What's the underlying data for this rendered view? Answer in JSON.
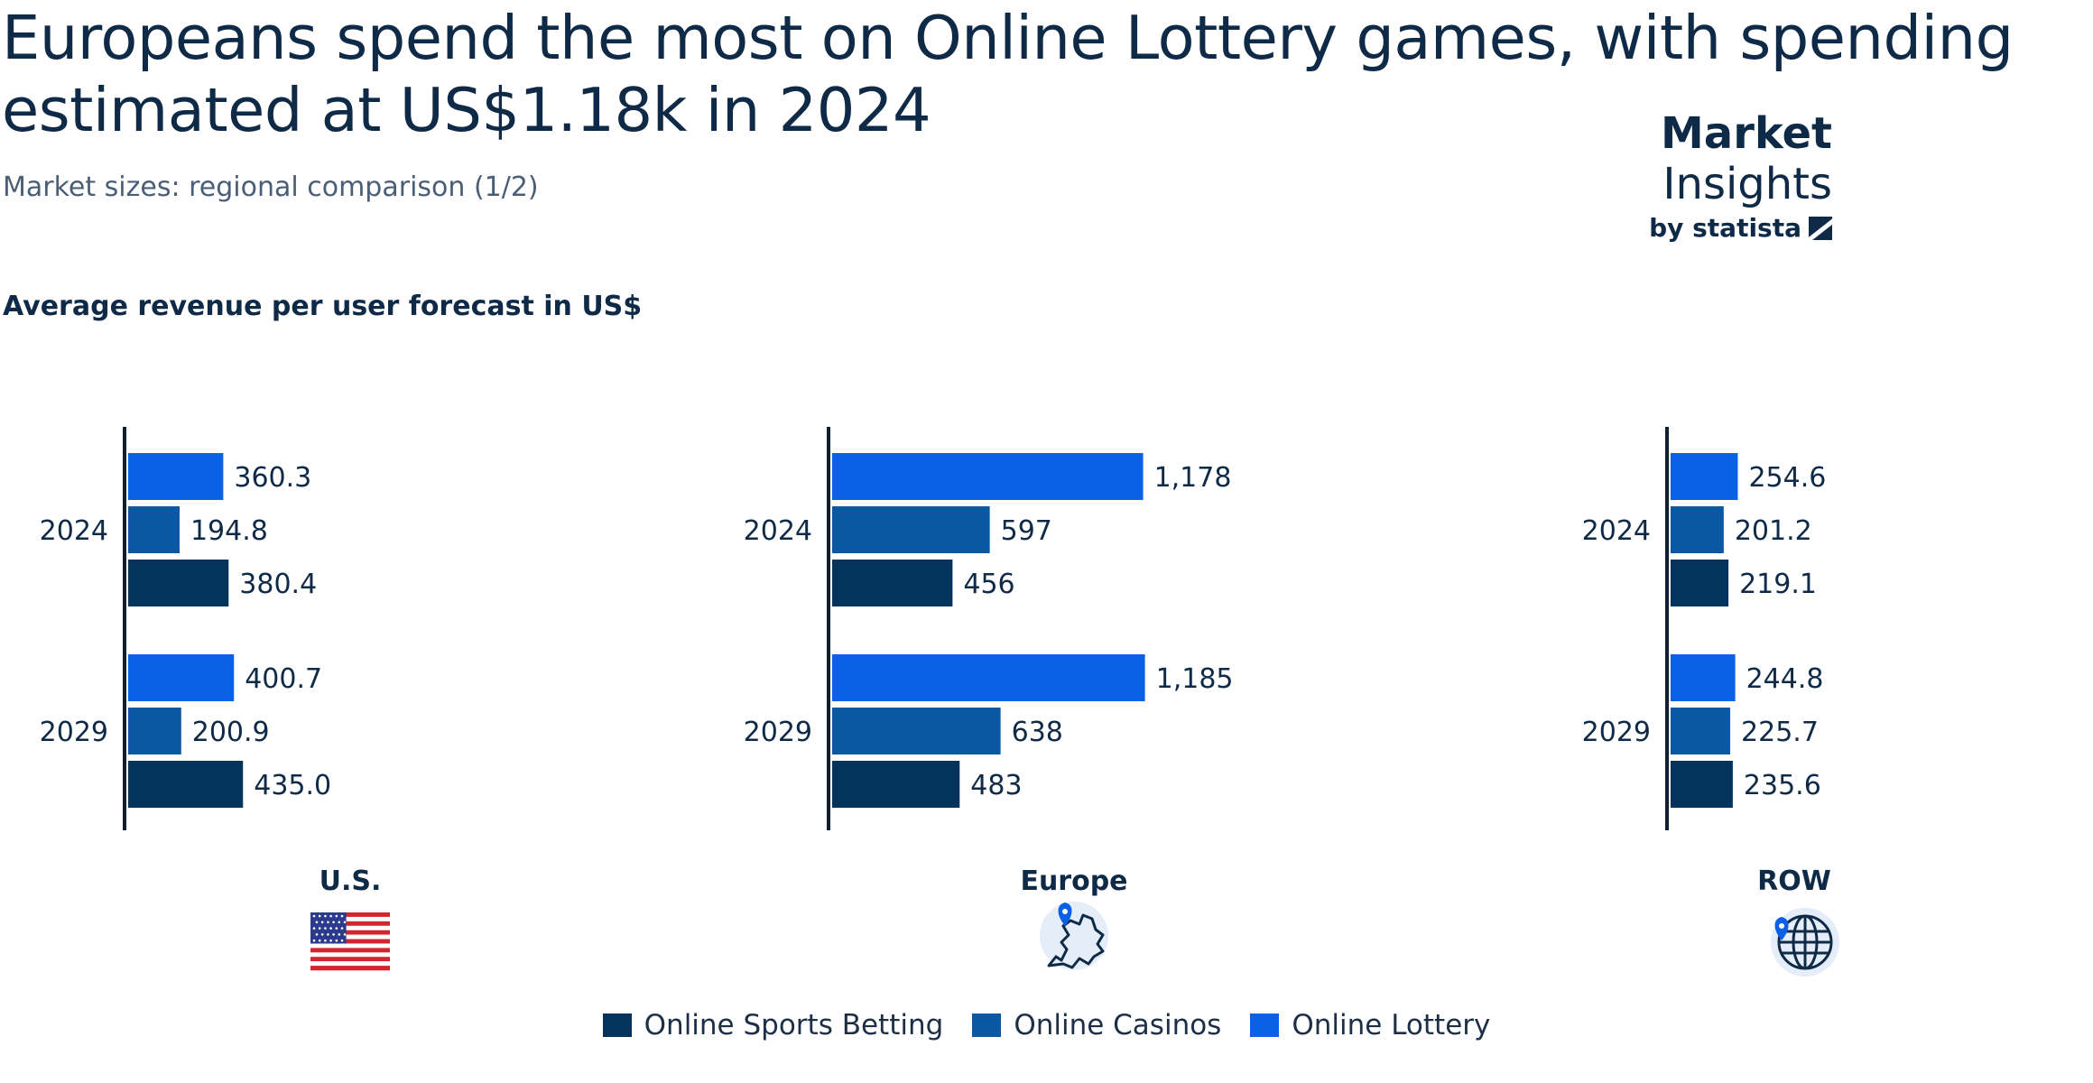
{
  "header": {
    "title": "Europeans spend the most on Online Lottery games, with spending estimated at US$1.18k in 2024",
    "subtitle": "Market sizes: regional comparison (1/2)"
  },
  "logo": {
    "brand_bold": "Market",
    "brand_light": "Insights",
    "by_text": "by statista"
  },
  "colors": {
    "online_sports_betting": "#04345c",
    "online_casinos": "#0a58a3",
    "online_lottery": "#0a61e6"
  },
  "chart_data": {
    "type": "bar",
    "orientation": "horizontal",
    "title": "Average revenue per user forecast in US$",
    "series_names": [
      "Online Lottery",
      "Online Casinos",
      "Online Sports Betting"
    ],
    "panels": [
      {
        "region": "U.S.",
        "icon": "us-flag-icon",
        "groups": [
          {
            "year": "2024",
            "values": [
              360.3,
              194.8,
              380.4
            ],
            "labels": [
              "360.3",
              "194.8",
              "380.4"
            ]
          },
          {
            "year": "2029",
            "values": [
              400.7,
              200.9,
              435.0
            ],
            "labels": [
              "400.7",
              "200.9",
              "435.0"
            ]
          }
        ]
      },
      {
        "region": "Europe",
        "icon": "europe-map-icon",
        "groups": [
          {
            "year": "2024",
            "values": [
              1178,
              597,
              456
            ],
            "labels": [
              "1,178",
              "597",
              "456"
            ]
          },
          {
            "year": "2029",
            "values": [
              1185,
              638,
              483
            ],
            "labels": [
              "1,185",
              "638",
              "483"
            ]
          }
        ]
      },
      {
        "region": "ROW",
        "icon": "globe-icon",
        "groups": [
          {
            "year": "2024",
            "values": [
              254.6,
              201.2,
              219.1
            ],
            "labels": [
              "254.6",
              "201.2",
              "219.1"
            ]
          },
          {
            "year": "2029",
            "values": [
              244.8,
              225.7,
              235.6
            ],
            "labels": [
              "244.8",
              "225.7",
              "235.6"
            ]
          }
        ]
      }
    ],
    "legend": [
      "Online Sports Betting",
      "Online Casinos",
      "Online Lottery"
    ],
    "grid": false,
    "legend_position": "bottom"
  }
}
